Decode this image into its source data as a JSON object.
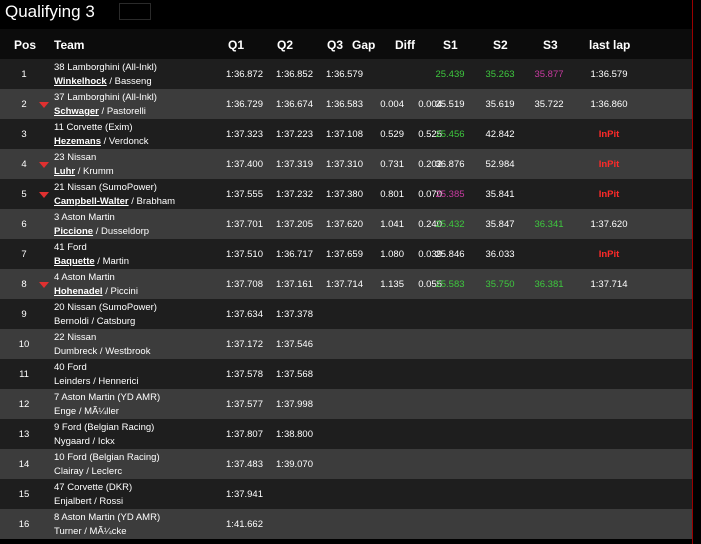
{
  "title": "Qualifying 3",
  "headers": {
    "pos": "Pos",
    "team": "Team",
    "q1": "Q1",
    "q2": "Q2",
    "q3": "Q3",
    "gap": "Gap",
    "diff": "Diff",
    "s1": "S1",
    "s2": "S2",
    "s3": "S3",
    "last": "last lap"
  },
  "colors": {
    "sector_best": "#3ec83e",
    "overall_best": "#c83aa0",
    "in_pit": "#ff2a2a",
    "lost_position_arrow": "#e03030"
  },
  "rows": [
    {
      "pos": "1",
      "arrow": false,
      "car": "38 Lamborghini (All-Inkl)",
      "d1": "Winkelhock",
      "d2": "Basseng",
      "q1": "1:36.872",
      "q2": "1:36.852",
      "q3": "1:36.579",
      "gap": "",
      "diff": "",
      "s1": "25.439",
      "s1c": "green",
      "s2": "35.263",
      "s2c": "green",
      "s3": "35.877",
      "s3c": "purple",
      "last": "1:36.579",
      "lastc": ""
    },
    {
      "pos": "2",
      "arrow": true,
      "car": "37 Lamborghini (All-Inkl)",
      "d1": "Schwager",
      "d2": "Pastorelli",
      "q1": "1:36.729",
      "q2": "1:36.674",
      "q3": "1:36.583",
      "gap": "0.004",
      "diff": "0.004",
      "s1": "25.519",
      "s1c": "",
      "s2": "35.619",
      "s2c": "",
      "s3": "35.722",
      "s3c": "",
      "last": "1:36.860",
      "lastc": ""
    },
    {
      "pos": "3",
      "arrow": false,
      "car": "11 Corvette (Exim)",
      "d1": "Hezemans",
      "d2": "Verdonck",
      "q1": "1:37.323",
      "q2": "1:37.223",
      "q3": "1:37.108",
      "gap": "0.529",
      "diff": "0.525",
      "s1": "25.456",
      "s1c": "green",
      "s2": "42.842",
      "s2c": "",
      "s3": "",
      "s3c": "",
      "last": "InPit",
      "lastc": "inpit"
    },
    {
      "pos": "4",
      "arrow": true,
      "car": "23 Nissan",
      "d1": "Luhr",
      "d2": "Krumm",
      "q1": "1:37.400",
      "q2": "1:37.319",
      "q3": "1:37.310",
      "gap": "0.731",
      "diff": "0.202",
      "s1": "36.876",
      "s1c": "",
      "s2": "52.984",
      "s2c": "",
      "s3": "",
      "s3c": "",
      "last": "InPit",
      "lastc": "inpit"
    },
    {
      "pos": "5",
      "arrow": true,
      "car": "21 Nissan (SumoPower)",
      "d1": "Campbell-Walter",
      "d2": "Brabham",
      "q1": "1:37.555",
      "q2": "1:37.232",
      "q3": "1:37.380",
      "gap": "0.801",
      "diff": "0.070",
      "s1": "25.385",
      "s1c": "purple",
      "s2": "35.841",
      "s2c": "",
      "s3": "",
      "s3c": "",
      "last": "InPit",
      "lastc": "inpit"
    },
    {
      "pos": "6",
      "arrow": false,
      "car": "3 Aston Martin",
      "d1": "Piccione",
      "d2": "Dusseldorp",
      "q1": "1:37.701",
      "q2": "1:37.205",
      "q3": "1:37.620",
      "gap": "1.041",
      "diff": "0.240",
      "s1": "25.432",
      "s1c": "green",
      "s2": "35.847",
      "s2c": "",
      "s3": "36.341",
      "s3c": "green",
      "last": "1:37.620",
      "lastc": ""
    },
    {
      "pos": "7",
      "arrow": false,
      "car": "41 Ford",
      "d1": "Baquette",
      "d2": "Martin",
      "q1": "1:37.510",
      "q2": "1:36.717",
      "q3": "1:37.659",
      "gap": "1.080",
      "diff": "0.039",
      "s1": "25.846",
      "s1c": "",
      "s2": "36.033",
      "s2c": "",
      "s3": "",
      "s3c": "",
      "last": "InPit",
      "lastc": "inpit"
    },
    {
      "pos": "8",
      "arrow": true,
      "car": "4 Aston Martin",
      "d1": "Hohenadel",
      "d2": "Piccini",
      "q1": "1:37.708",
      "q2": "1:37.161",
      "q3": "1:37.714",
      "gap": "1.135",
      "diff": "0.055",
      "s1": "25.583",
      "s1c": "green",
      "s2": "35.750",
      "s2c": "green",
      "s3": "36.381",
      "s3c": "green",
      "last": "1:37.714",
      "lastc": ""
    },
    {
      "pos": "9",
      "arrow": false,
      "car": "20 Nissan (SumoPower)",
      "d1": "",
      "d2": "Bernoldi / Catsburg",
      "q1": "1:37.634",
      "q2": "1:37.378",
      "q3": "",
      "gap": "",
      "diff": "",
      "s1": "",
      "s1c": "",
      "s2": "",
      "s2c": "",
      "s3": "",
      "s3c": "",
      "last": "",
      "lastc": ""
    },
    {
      "pos": "10",
      "arrow": false,
      "car": "22 Nissan",
      "d1": "",
      "d2": "Dumbreck / Westbrook",
      "q1": "1:37.172",
      "q2": "1:37.546",
      "q3": "",
      "gap": "",
      "diff": "",
      "s1": "",
      "s1c": "",
      "s2": "",
      "s2c": "",
      "s3": "",
      "s3c": "",
      "last": "",
      "lastc": ""
    },
    {
      "pos": "11",
      "arrow": false,
      "car": "40 Ford",
      "d1": "",
      "d2": "Leinders / Hennerici",
      "q1": "1:37.578",
      "q2": "1:37.568",
      "q3": "",
      "gap": "",
      "diff": "",
      "s1": "",
      "s1c": "",
      "s2": "",
      "s2c": "",
      "s3": "",
      "s3c": "",
      "last": "",
      "lastc": ""
    },
    {
      "pos": "12",
      "arrow": false,
      "car": "7 Aston Martin (YD AMR)",
      "d1": "",
      "d2": "Enge / MÃ¼ller",
      "q1": "1:37.577",
      "q2": "1:37.998",
      "q3": "",
      "gap": "",
      "diff": "",
      "s1": "",
      "s1c": "",
      "s2": "",
      "s2c": "",
      "s3": "",
      "s3c": "",
      "last": "",
      "lastc": ""
    },
    {
      "pos": "13",
      "arrow": false,
      "car": "9 Ford (Belgian Racing)",
      "d1": "",
      "d2": "Nygaard / Ickx",
      "q1": "1:37.807",
      "q2": "1:38.800",
      "q3": "",
      "gap": "",
      "diff": "",
      "s1": "",
      "s1c": "",
      "s2": "",
      "s2c": "",
      "s3": "",
      "s3c": "",
      "last": "",
      "lastc": ""
    },
    {
      "pos": "14",
      "arrow": false,
      "car": "10 Ford (Belgian Racing)",
      "d1": "",
      "d2": "Clairay / Leclerc",
      "q1": "1:37.483",
      "q2": "1:39.070",
      "q3": "",
      "gap": "",
      "diff": "",
      "s1": "",
      "s1c": "",
      "s2": "",
      "s2c": "",
      "s3": "",
      "s3c": "",
      "last": "",
      "lastc": ""
    },
    {
      "pos": "15",
      "arrow": false,
      "car": "47 Corvette (DKR)",
      "d1": "",
      "d2": "Enjalbert / Rossi",
      "q1": "1:37.941",
      "q2": "",
      "q3": "",
      "gap": "",
      "diff": "",
      "s1": "",
      "s1c": "",
      "s2": "",
      "s2c": "",
      "s3": "",
      "s3c": "",
      "last": "",
      "lastc": ""
    },
    {
      "pos": "16",
      "arrow": false,
      "car": "8 Aston Martin (YD AMR)",
      "d1": "",
      "d2": "Turner / MÃ¼cke",
      "q1": "1:41.662",
      "q2": "",
      "q3": "",
      "gap": "",
      "diff": "",
      "s1": "",
      "s1c": "",
      "s2": "",
      "s2c": "",
      "s3": "",
      "s3c": "",
      "last": "",
      "lastc": ""
    }
  ]
}
